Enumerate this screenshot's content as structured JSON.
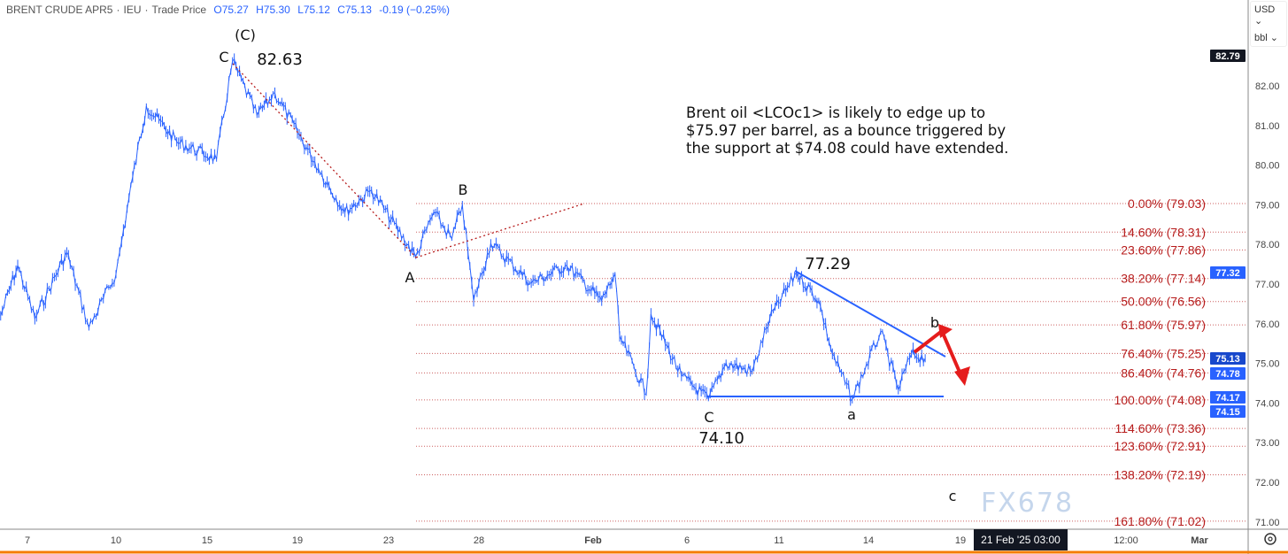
{
  "header": {
    "symbol": "BRENT CRUDE APR5",
    "exchange": "IEU",
    "price_type": "Trade Price",
    "open": "O75.27",
    "high": "H75.30",
    "low": "L75.12",
    "close": "C75.13",
    "change": "-0.19 (−0.25%)"
  },
  "currency_menu": {
    "currency": "USD",
    "unit": "bbl"
  },
  "note_lines": [
    "Brent oil <LCOc1> is likely to edge up to",
    "$75.97 per barrel, as a bounce triggered by",
    "the support at $74.08 could have extended."
  ],
  "watermark": "FX678",
  "colors": {
    "series": "#2962ff",
    "fib": "#b71c1c",
    "trend": "#2962ff",
    "arrow": "#e51c1c",
    "badge_blue": "#2962ff",
    "badge_dark": "#1848cc",
    "badge_black": "#131722"
  },
  "chart_data": {
    "type": "line",
    "title": "",
    "ylim": [
      70.9,
      83.3
    ],
    "y_ticks": [
      "82.00",
      "81.00",
      "80.00",
      "79.00",
      "78.00",
      "77.00",
      "76.00",
      "75.00",
      "74.00",
      "73.00",
      "72.00",
      "71.00"
    ],
    "x_ticks": [
      "7",
      "10",
      "15",
      "19",
      "23",
      "28",
      "Feb",
      "6",
      "11",
      "14",
      "19",
      "12:00",
      "Mar"
    ],
    "crosshair_label": "21 Feb '25   03:00",
    "price_badges": [
      {
        "value": "82.79",
        "style": "black"
      },
      {
        "value": "77.32",
        "style": "blue"
      },
      {
        "value": "75.13",
        "style": "dark"
      },
      {
        "value": "74.78",
        "style": "blue"
      },
      {
        "value": "74.17",
        "style": "blue"
      },
      {
        "value": "74.15",
        "style": "blue"
      }
    ],
    "series": [
      {
        "x": [
          "2025-01-06T02",
          "2025-01-06T16",
          "2025-01-07T06",
          "2025-01-08T08",
          "2025-01-09T02",
          "2025-01-10T00",
          "2025-01-10T22",
          "2025-01-11T16",
          "2025-01-13T08",
          "2025-01-15T10",
          "2025-01-16T03",
          "2025-01-17T05",
          "2025-01-18T00",
          "2025-01-19T22",
          "2025-01-21T02",
          "2025-01-22T06",
          "2025-01-24T12",
          "2025-01-25T12",
          "2025-01-26T12",
          "2025-01-27T02",
          "2025-01-27T17",
          "2025-01-28T10",
          "2025-01-29T20",
          "2025-01-31T02",
          "2025-02-01T11",
          "2025-02-02T04",
          "2025-02-02T10",
          "2025-02-03T20",
          "2025-02-04T02",
          "2025-02-05T17",
          "2025-02-07T04",
          "2025-02-08T03",
          "2025-02-09T13",
          "2025-02-10T12",
          "2025-02-11T14",
          "2025-02-12T08",
          "2025-02-12T19",
          "2025-02-13T11",
          "2025-02-14T16",
          "2025-02-15T15",
          "2025-02-16T08",
          "2025-02-17T02"
        ],
        "values": [
          76.2,
          77.47,
          76.13,
          77.8,
          75.9,
          77.25,
          79.7,
          81.49,
          80.59,
          80.15,
          82.63,
          81.26,
          81.82,
          79.92,
          78.81,
          79.37,
          77.69,
          78.81,
          78.14,
          79.0,
          76.58,
          78.03,
          77.02,
          77.47,
          76.58,
          77.25,
          75.68,
          74.23,
          76.24,
          74.68,
          74.1,
          75.01,
          74.79,
          76.13,
          77.29,
          76.58,
          75.24,
          74.1,
          75.8,
          74.34,
          75.24,
          75.13
        ]
      }
    ],
    "fib_levels": [
      {
        "label": "0.00% (79.03)",
        "value": 79.03
      },
      {
        "label": "14.60% (78.31)",
        "value": 78.31
      },
      {
        "label": "23.60% (77.86)",
        "value": 77.86
      },
      {
        "label": "38.20% (77.14)",
        "value": 77.14
      },
      {
        "label": "50.00% (76.56)",
        "value": 76.56
      },
      {
        "label": "61.80% (75.97)",
        "value": 75.97
      },
      {
        "label": "76.40% (75.25)",
        "value": 75.25
      },
      {
        "label": "86.40% (74.76)",
        "value": 74.76
      },
      {
        "label": "100.00% (74.08)",
        "value": 74.08
      },
      {
        "label": "114.60% (73.36)",
        "value": 73.36
      },
      {
        "label": "123.60% (72.91)",
        "value": 72.91
      },
      {
        "label": "138.20% (72.19)",
        "value": 72.19
      },
      {
        "label": "161.80% (71.02)",
        "value": 71.02
      }
    ],
    "wave_labels": [
      "(C)",
      "C",
      "82.63",
      "A",
      "B",
      "77.29",
      "C",
      "74.10",
      "a",
      "b",
      "c"
    ]
  }
}
